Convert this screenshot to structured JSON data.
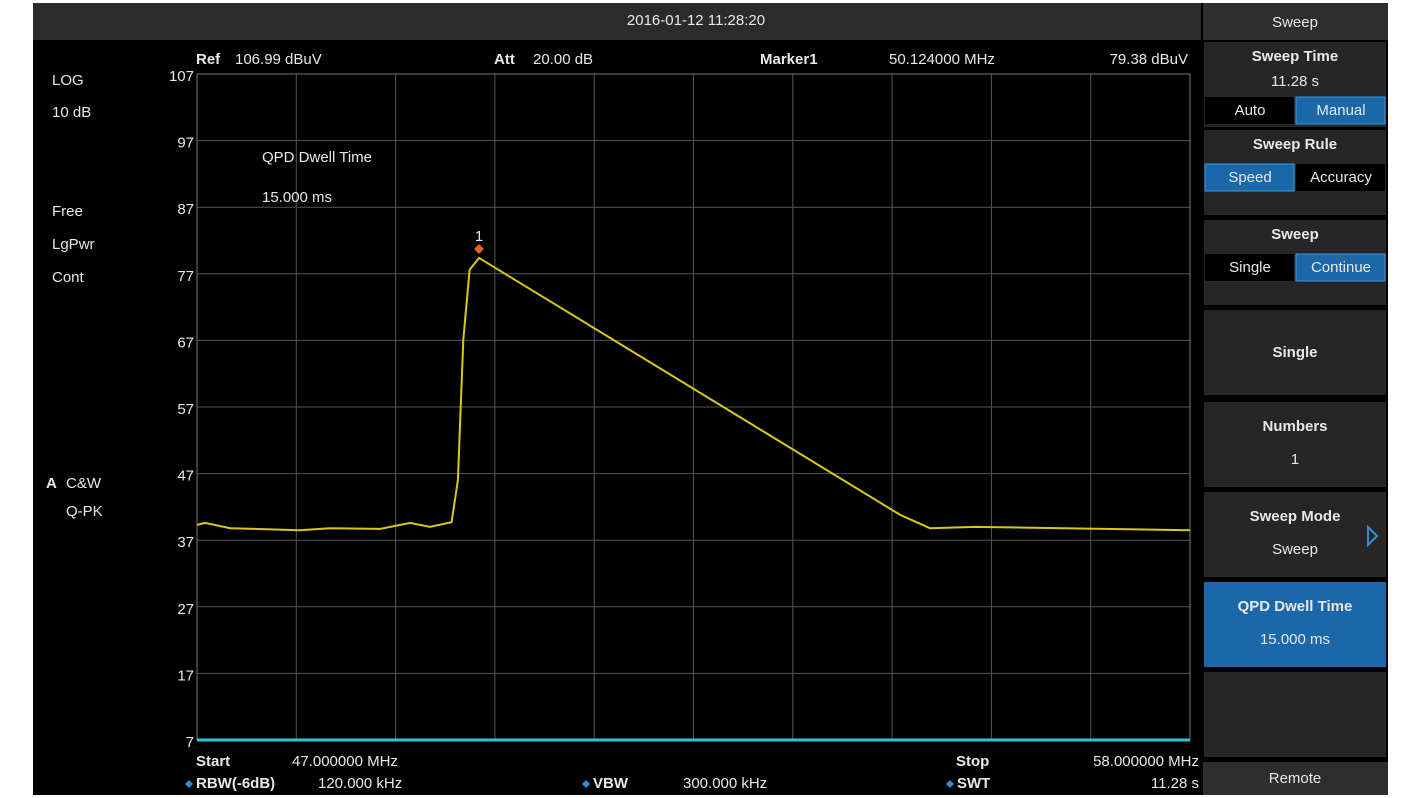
{
  "timestamp": "2016-01-12  11:28:20",
  "left_status": [
    "LOG",
    "10 dB",
    "Free",
    "LgPwr",
    "Cont"
  ],
  "trace_label": {
    "letter": "A",
    "mode": "C&W",
    "detector": "Q-PK"
  },
  "header": {
    "ref_label": "Ref",
    "ref_value": "106.99 dBuV",
    "att_label": "Att",
    "att_value": "20.00 dB",
    "marker_label": "Marker1",
    "marker_freq": "50.124000 MHz",
    "marker_level": "79.38 dBuV"
  },
  "footer": {
    "start_label": "Start",
    "start_value": "47.000000 MHz",
    "stop_label": "Stop",
    "stop_value": "58.000000 MHz",
    "rbw_label": "RBW(-6dB)",
    "rbw_value": "120.000 kHz",
    "vbw_label": "VBW",
    "vbw_value": "300.000 kHz",
    "swt_label": "SWT",
    "swt_value": "11.28 s"
  },
  "chart_data": {
    "type": "line",
    "annotation": [
      "QPD Dwell Time",
      "15.000 ms"
    ],
    "x": [
      47.0,
      47.09,
      47.37,
      48.14,
      48.47,
      49.03,
      49.36,
      49.58,
      49.82,
      49.89,
      49.95,
      50.02,
      50.124,
      54.79,
      55.12,
      55.62,
      58.0
    ],
    "series": [
      {
        "color": "#d8c81c",
        "values": [
          39.3,
          39.6,
          38.8,
          38.5,
          38.8,
          38.7,
          39.6,
          39.0,
          39.7,
          46.0,
          67.1,
          77.6,
          79.38,
          40.8,
          38.8,
          39.0,
          38.5
        ]
      }
    ],
    "marker": {
      "label": "1",
      "x": 50.124,
      "y": 79.38,
      "color": "#e0641c"
    },
    "xlim": [
      47,
      58
    ],
    "ylim": [
      7,
      107
    ],
    "yticks": [
      107,
      97,
      87,
      77,
      67,
      57,
      47,
      37,
      27,
      17,
      7
    ],
    "grid": true
  },
  "menu": {
    "title": "Sweep",
    "items": [
      {
        "label": "Sweep Time",
        "value": "11.28 s",
        "options": [
          "Auto",
          "Manual"
        ],
        "selected": 1
      },
      {
        "label": "Sweep Rule",
        "options": [
          "Speed",
          "Accuracy"
        ],
        "selected": 0
      },
      {
        "label": "Sweep",
        "options": [
          "Single",
          "Continue"
        ],
        "selected": 1
      },
      {
        "label": "Single"
      },
      {
        "label": "Numbers",
        "value": "1"
      },
      {
        "label": "Sweep Mode",
        "value": "Sweep",
        "disabled": true,
        "submenu": true
      },
      {
        "label": "QPD Dwell Time",
        "value": "15.000 ms",
        "active": true
      }
    ],
    "footer": "Remote"
  }
}
